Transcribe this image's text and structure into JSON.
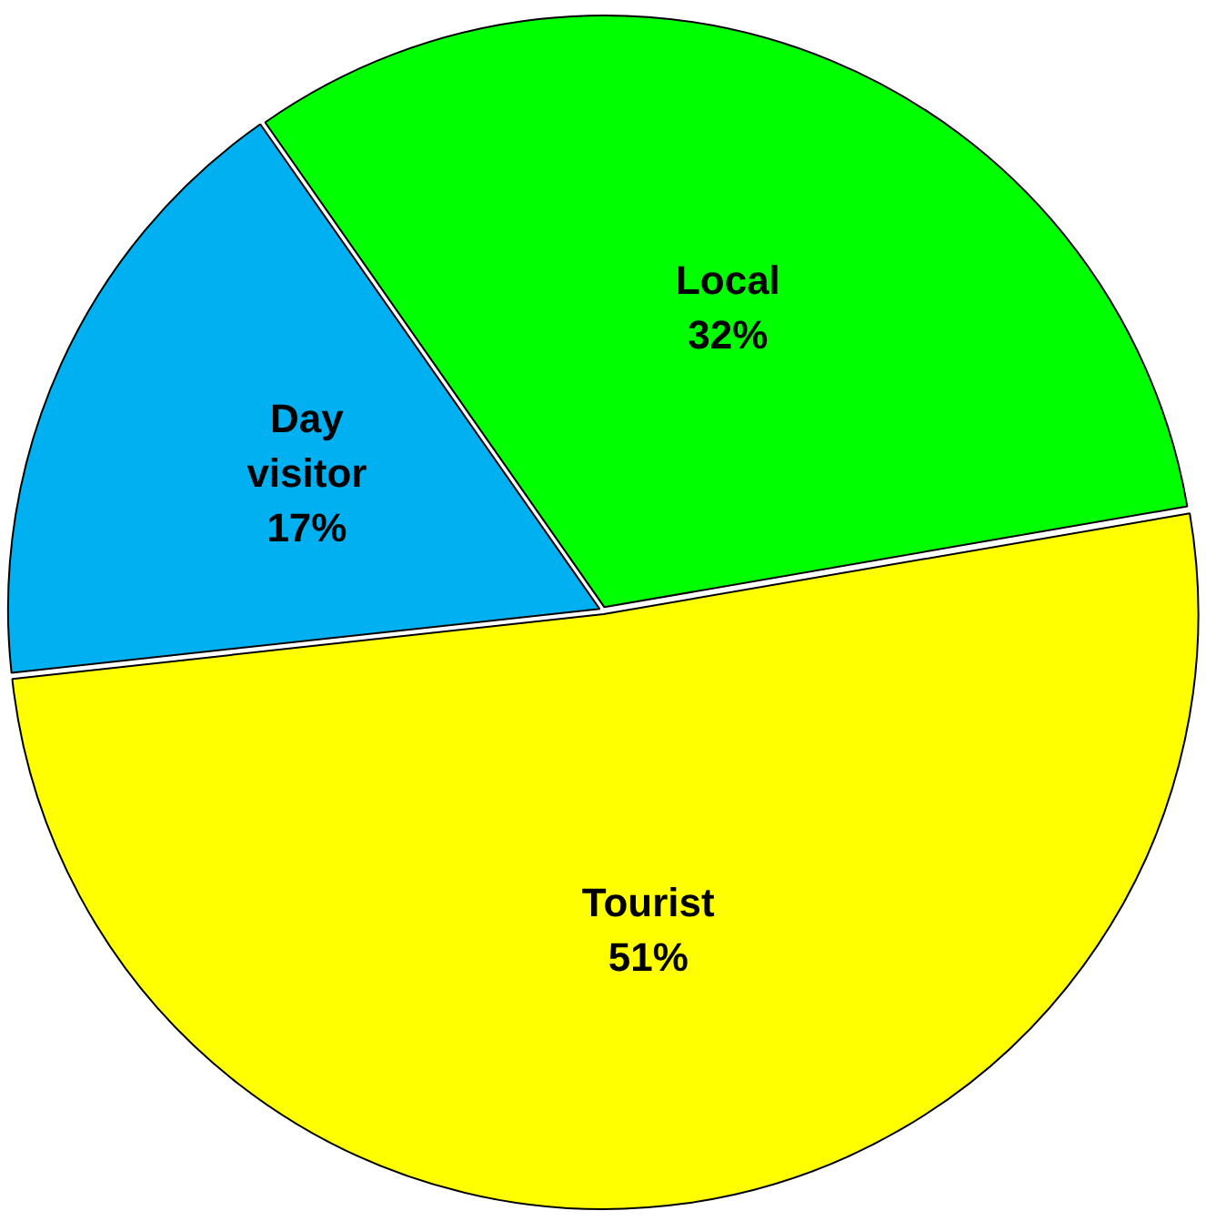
{
  "chart_data": {
    "type": "pie",
    "categories": [
      "Local",
      "Tourist",
      "Day visitor"
    ],
    "values": [
      32,
      51,
      17
    ],
    "colors": [
      "#00ff00",
      "#ffff00",
      "#00b0f0"
    ],
    "value_labels": [
      "32%",
      "51%",
      "17%"
    ],
    "legend": false
  }
}
